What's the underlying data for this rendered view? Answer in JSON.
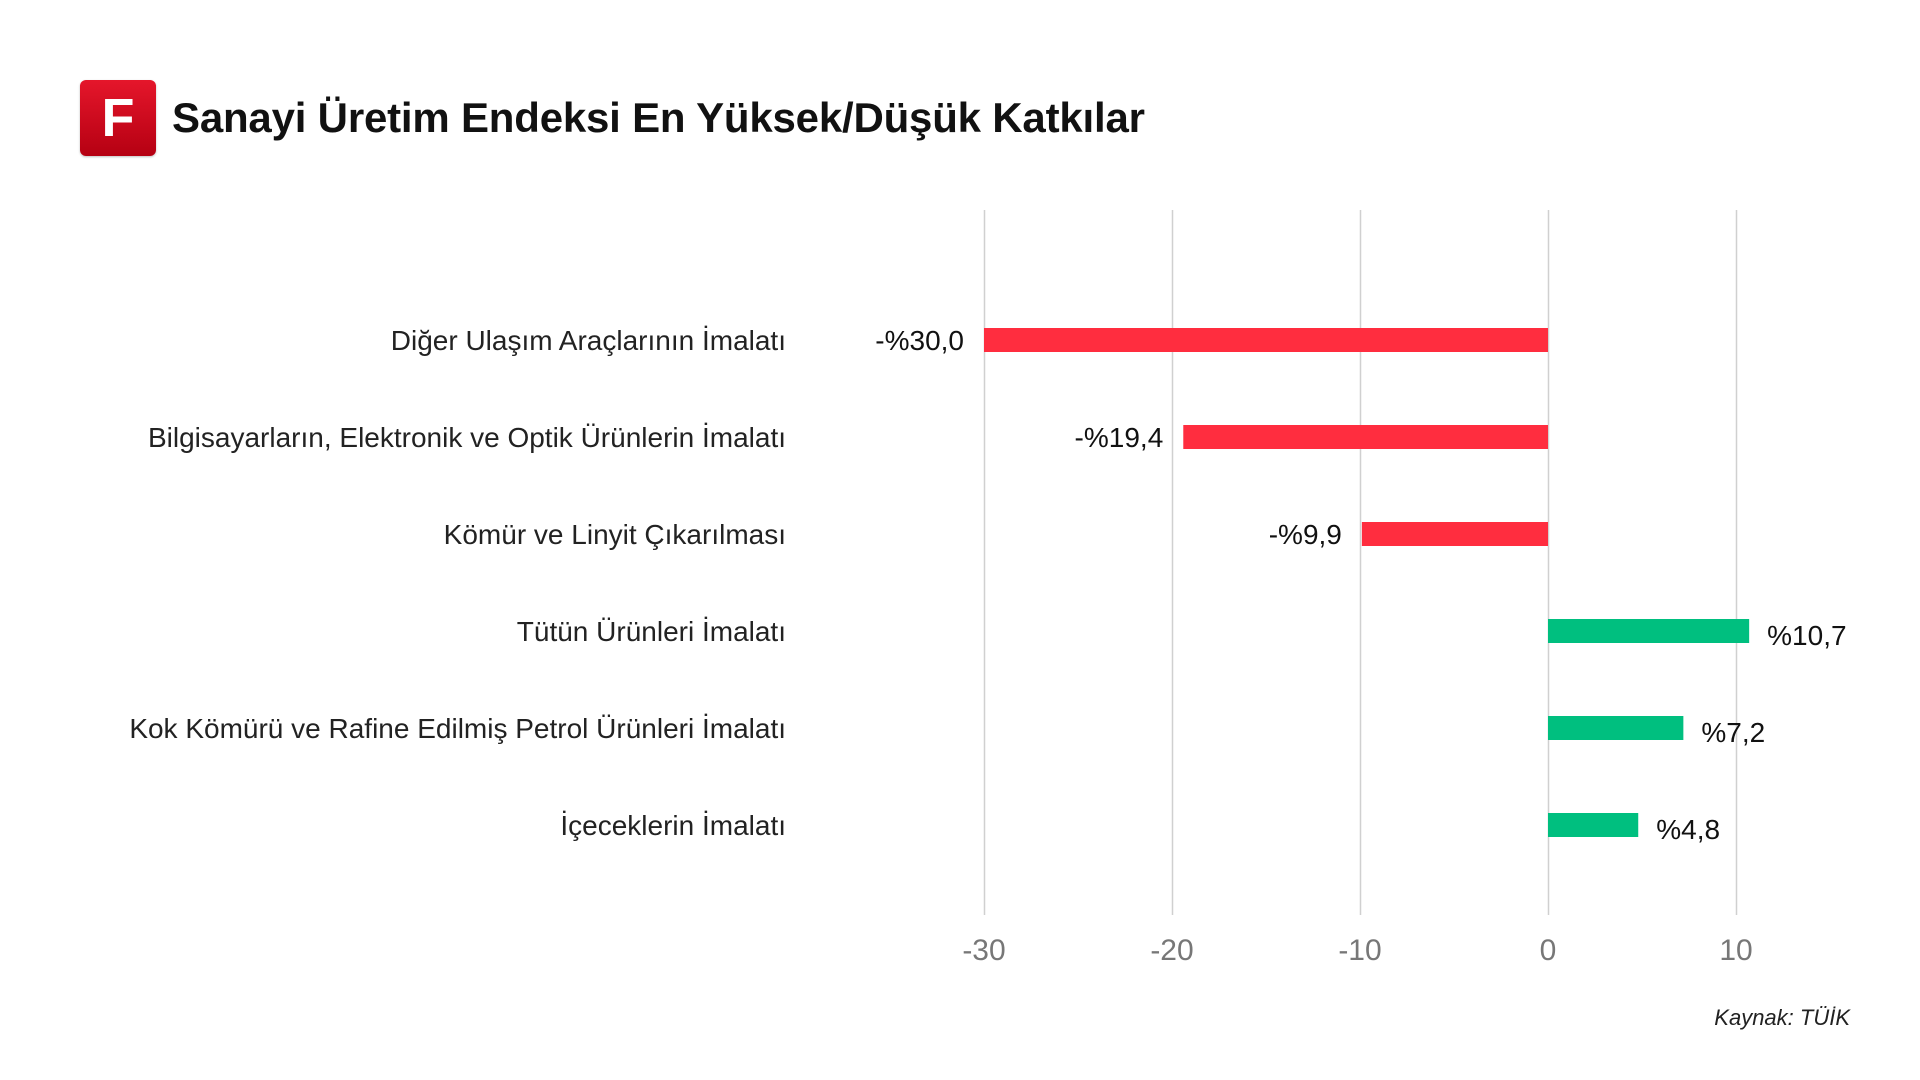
{
  "header": {
    "logo_letter": "F",
    "title": "Sanayi Üretim Endeksi En Yüksek/Düşük Katkılar"
  },
  "colors": {
    "negative": "#ff2d3f",
    "positive": "#00bf7f",
    "grid": "#d0d0d0",
    "logo": "#d0091f"
  },
  "chart_data": {
    "type": "bar",
    "orientation": "horizontal",
    "categories": [
      "Diğer Ulaşım Araçlarının İmalatı",
      "Bilgisayarların, Elektronik ve Optik Ürünlerin İmalatı",
      "Kömür ve Linyit Çıkarılması",
      "Tütün Ürünleri İmalatı",
      "Kok Kömürü ve Rafine Edilmiş Petrol Ürünleri İmalatı",
      "İçeceklerin İmalatı"
    ],
    "values": [
      -30.0,
      -19.4,
      -9.9,
      10.7,
      7.2,
      4.8
    ],
    "data_labels": [
      "-%30,0",
      "-%19,4",
      "-%9,9",
      "%10,7",
      "%7,2",
      "%4,8"
    ],
    "xlim": [
      -30,
      10
    ],
    "xticks": [
      -30,
      -20,
      -10,
      0,
      10
    ],
    "xtick_labels": [
      "-30",
      "-20",
      "-10",
      "0",
      "10"
    ],
    "grid": true,
    "legend": "none"
  },
  "source": "Kaynak: TÜİK"
}
